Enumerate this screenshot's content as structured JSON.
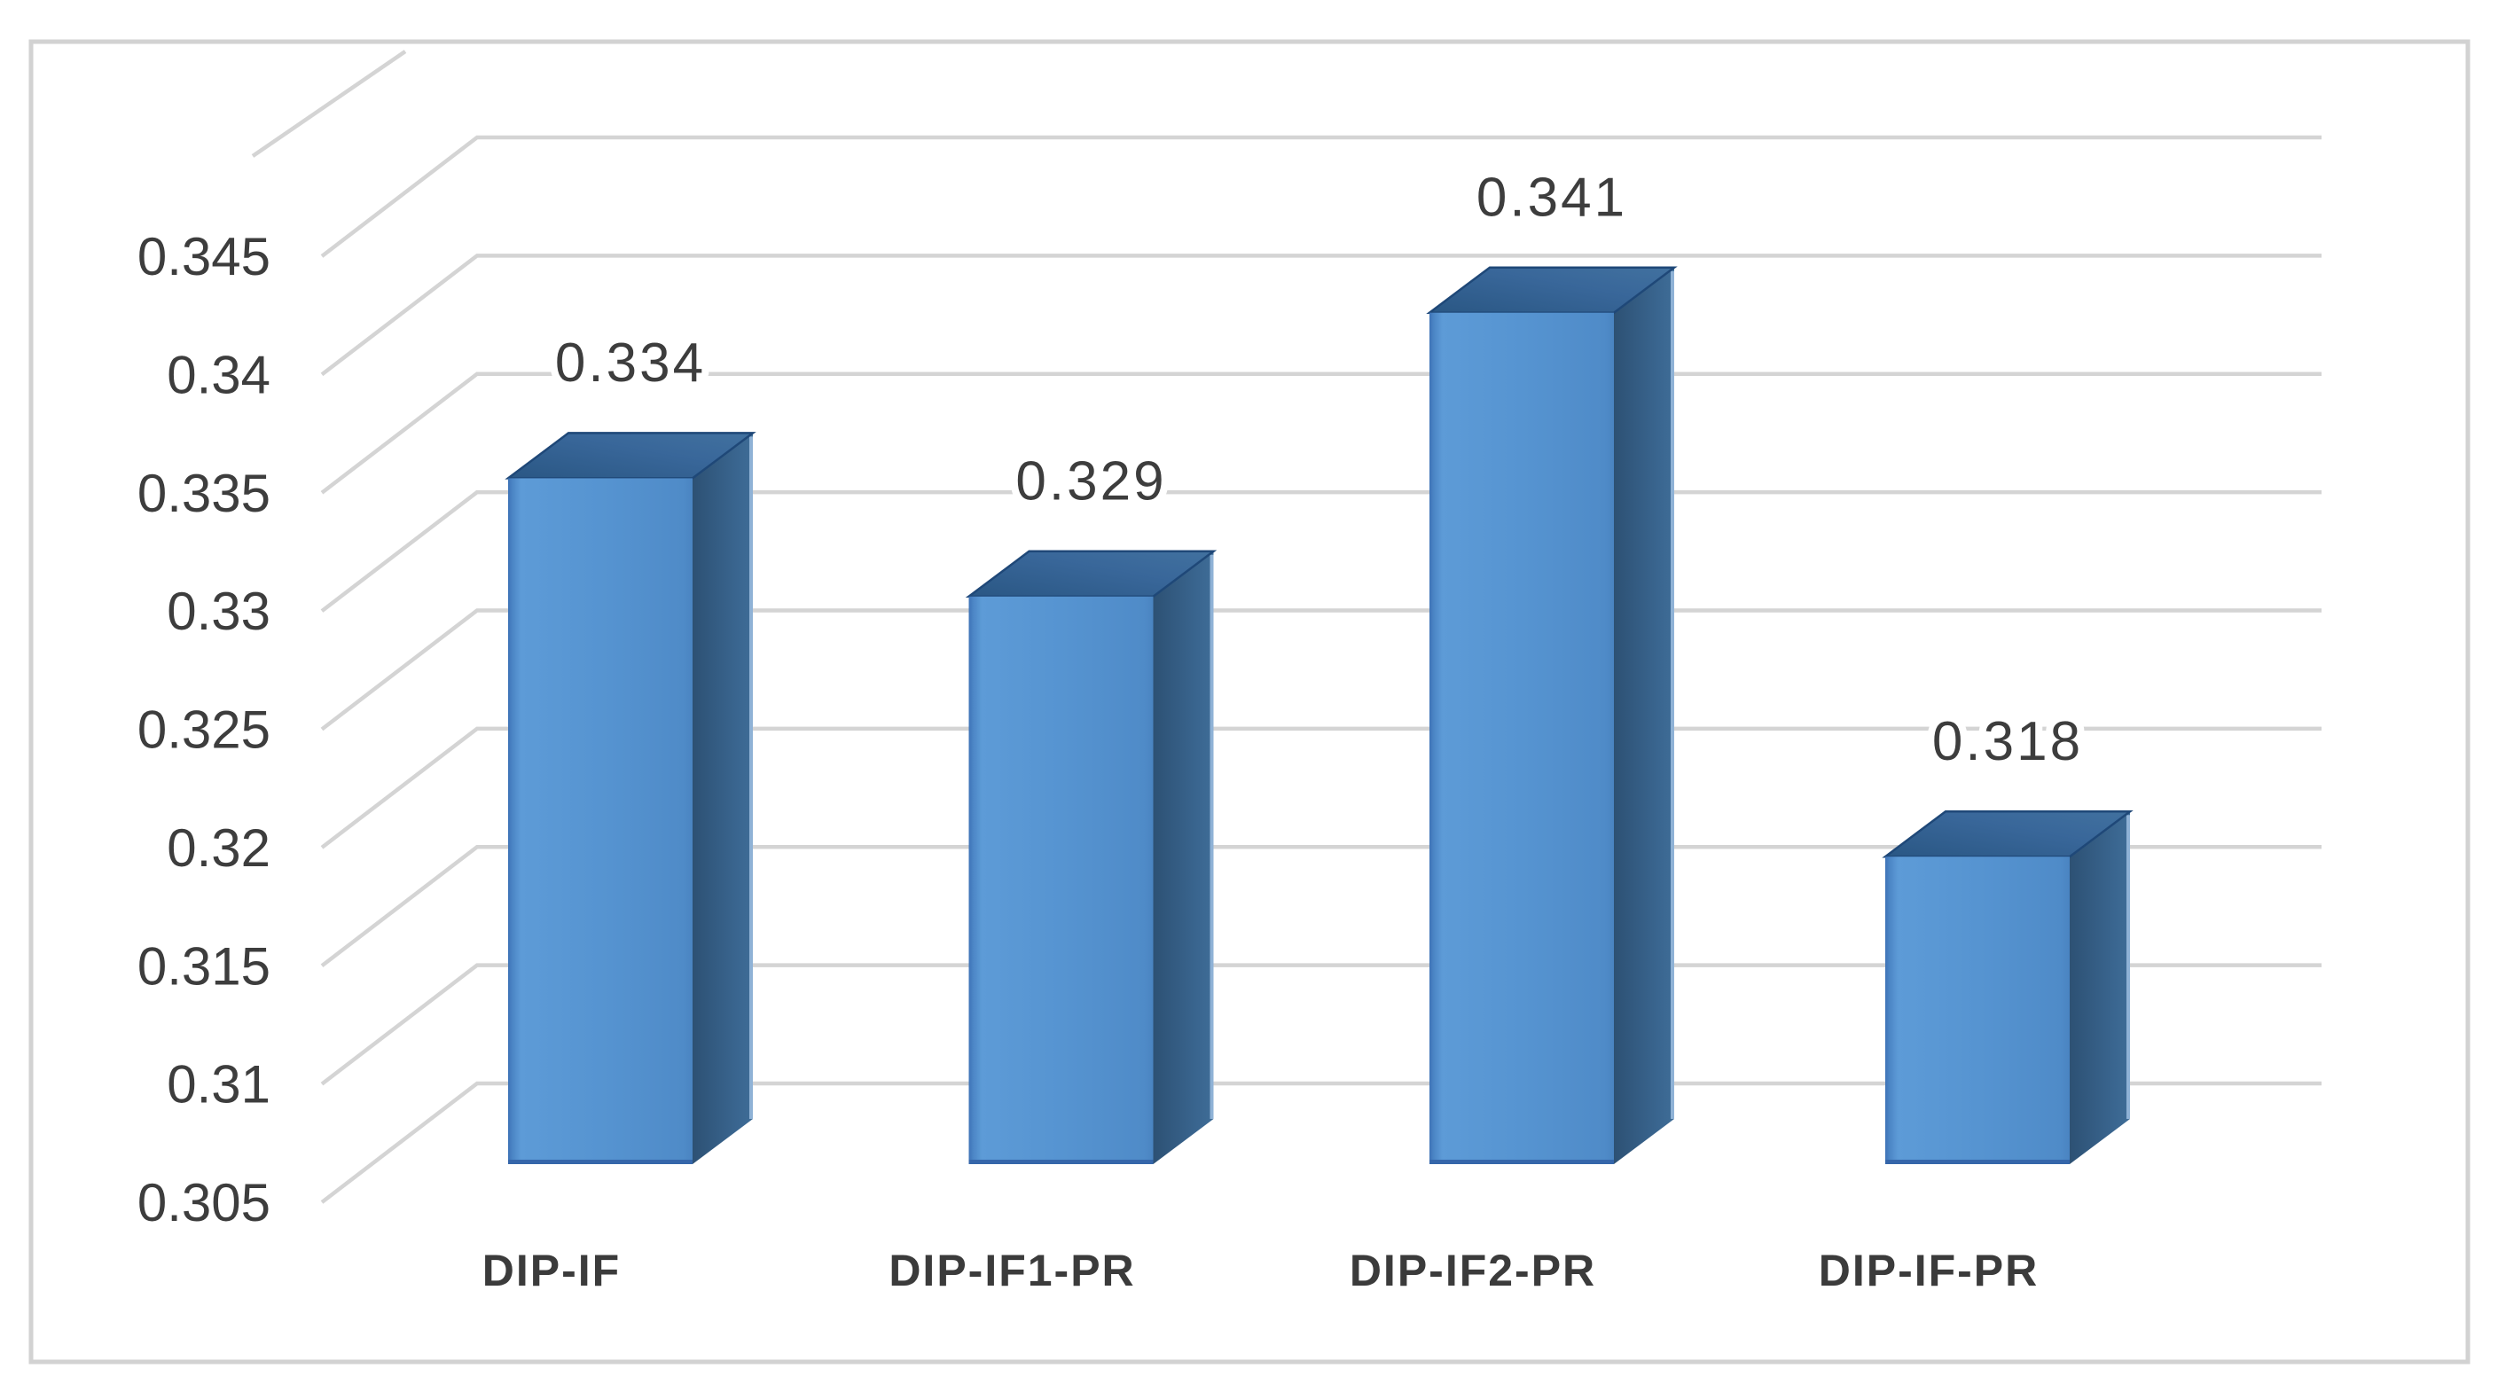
{
  "chart_data": {
    "type": "bar",
    "style": "3d-column",
    "title": "",
    "xlabel": "",
    "ylabel": "",
    "categories": [
      "DIP-IF",
      "DIP-IF1-PR",
      "DIP-IF2-PR",
      "DIP-IF-PR"
    ],
    "values": [
      0.334,
      0.329,
      0.341,
      0.318
    ],
    "data_labels": [
      "0.334",
      "0.329",
      "0.341",
      "0.318"
    ],
    "ylim": [
      0.305,
      0.345
    ],
    "ytick_step": 0.005,
    "yticks": [
      {
        "value": 0.345,
        "label": "0.345"
      },
      {
        "value": 0.34,
        "label": "0.34"
      },
      {
        "value": 0.335,
        "label": "0.335"
      },
      {
        "value": 0.33,
        "label": "0.33"
      },
      {
        "value": 0.325,
        "label": "0.325"
      },
      {
        "value": 0.32,
        "label": "0.32"
      },
      {
        "value": 0.315,
        "label": "0.315"
      },
      {
        "value": 0.31,
        "label": "0.31"
      },
      {
        "value": 0.305,
        "label": "0.305"
      }
    ],
    "grid": true,
    "legend": false,
    "colors": {
      "bar_front": "#5694d1",
      "bar_front_light": "#5d9bd7",
      "bar_front_edge_left": "#4076bb",
      "bar_front_edge_bottom": "#3566aa",
      "bar_top_light": "#41719f",
      "bar_top_dark": "#2a5784",
      "bar_top_outline": "#1f4878",
      "bar_side_dark": "#2d5174",
      "bar_side_light": "#3f6d97",
      "bar_side_rim": "#8fb2d6",
      "gridline": "#d4d4d4",
      "text": "#3d3d3d",
      "chart_border": "#d2d2d2",
      "background": "#ffffff"
    }
  }
}
